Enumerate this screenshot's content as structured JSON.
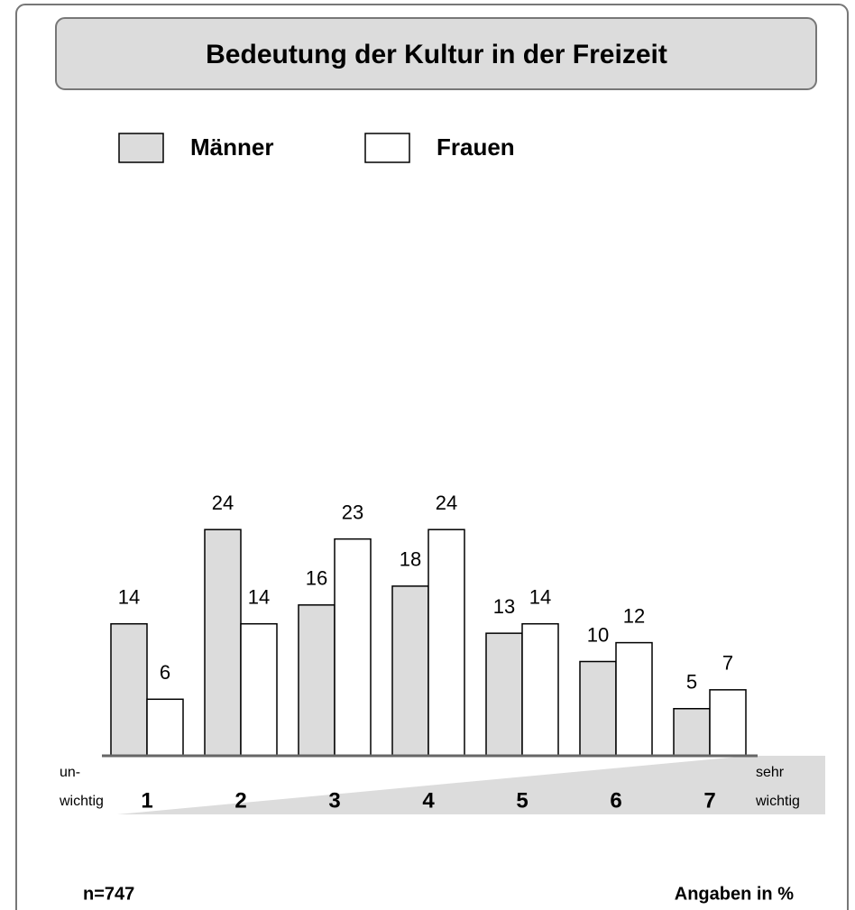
{
  "chart_data": {
    "type": "bar",
    "title": "Bedeutung der Kultur in der Freizeit",
    "categories": [
      "1",
      "2",
      "3",
      "4",
      "5",
      "6",
      "7"
    ],
    "series": [
      {
        "name": "Männer",
        "color": "#dcdcdc",
        "values": [
          14,
          24,
          16,
          18,
          13,
          10,
          5
        ]
      },
      {
        "name": "Frauen",
        "color": "#ffffff",
        "values": [
          6,
          14,
          23,
          24,
          14,
          12,
          7
        ]
      }
    ],
    "annotations": {
      "low": [
        "un-",
        "wichtig"
      ],
      "high": [
        "sehr",
        "wichtig"
      ],
      "sample": "n=747",
      "unit": "Angaben in %"
    }
  }
}
